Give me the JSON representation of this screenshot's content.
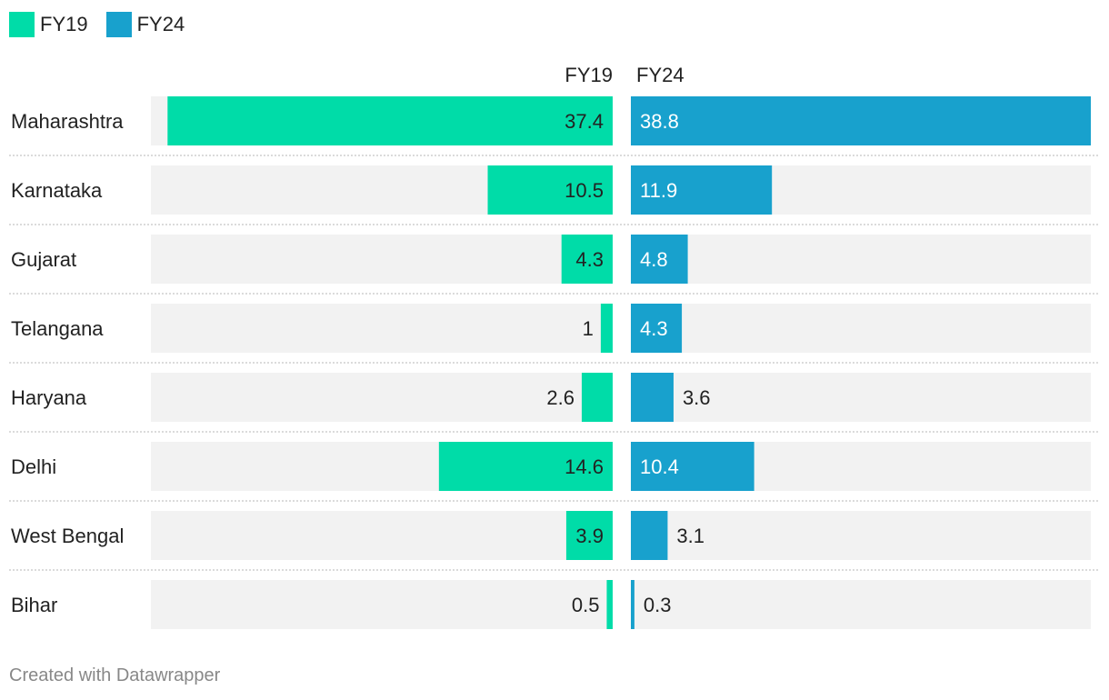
{
  "legend": [
    {
      "name": "FY19",
      "color": "#00dca8"
    },
    {
      "name": "FY24",
      "color": "#18a1cd"
    }
  ],
  "chart_data": {
    "type": "bar",
    "orientation": "horizontal",
    "layout": "split-bars",
    "categories": [
      "Maharashtra",
      "Karnataka",
      "Gujarat",
      "Telangana",
      "Haryana",
      "Delhi",
      "West Bengal",
      "Bihar"
    ],
    "series": [
      {
        "name": "FY19",
        "color": "#00dca8",
        "values": [
          37.4,
          10.5,
          4.3,
          1,
          2.6,
          14.6,
          3.9,
          0.5
        ],
        "labels": [
          "37.4",
          "10.5",
          "4.3",
          "1",
          "2.6",
          "14.6",
          "3.9",
          "0.5"
        ]
      },
      {
        "name": "FY24",
        "color": "#18a1cd",
        "values": [
          38.8,
          11.9,
          4.8,
          4.3,
          3.6,
          10.4,
          3.1,
          0.3
        ],
        "labels": [
          "38.8",
          "11.9",
          "4.8",
          "4.3",
          "3.6",
          "10.4",
          "3.1",
          "0.3"
        ]
      }
    ],
    "column_headers": [
      "FY19",
      "FY24"
    ],
    "xlim": [
      0,
      38.8
    ],
    "background_track_color": "#f2f2f2",
    "grid": false,
    "legend_position": "top-left"
  },
  "footer": {
    "credit": "Created with Datawrapper"
  }
}
